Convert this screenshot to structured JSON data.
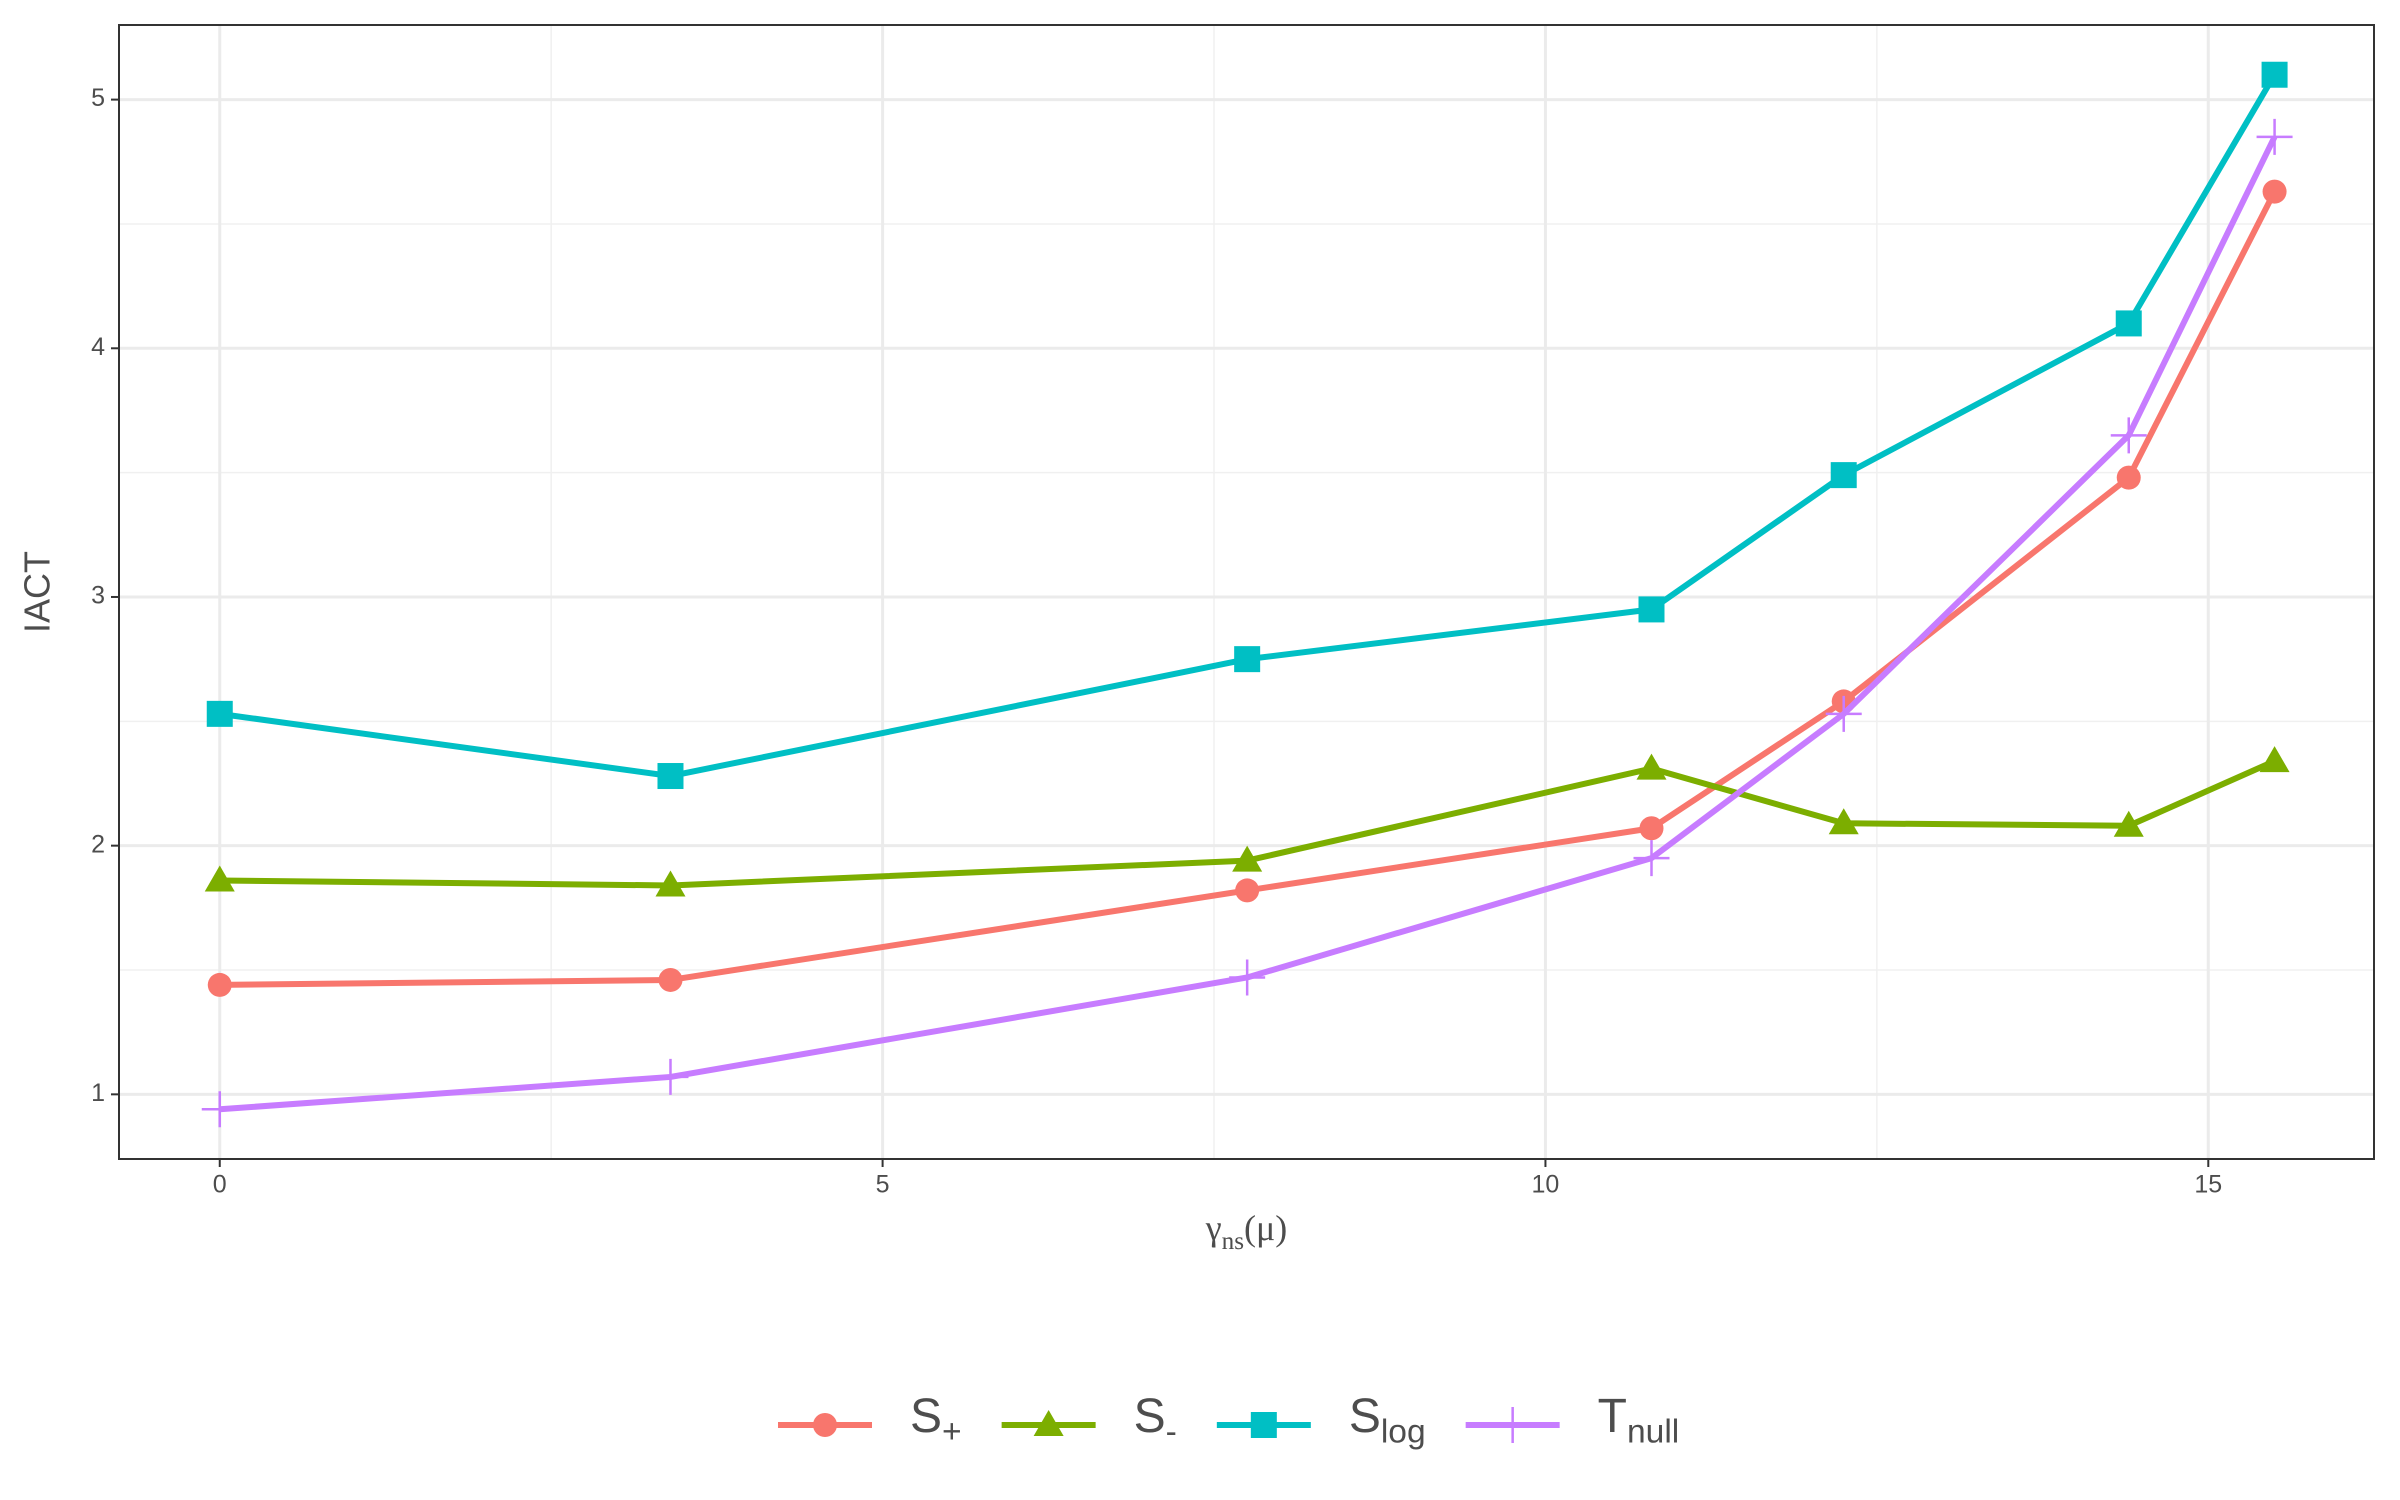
{
  "chart_data": {
    "type": "line",
    "x_label": "γns(μ)",
    "y_label": "IACT",
    "x": [
      0,
      3.4,
      7.75,
      10.8,
      12.25,
      14.4,
      15.5
    ],
    "series": [
      {
        "name": "S+",
        "color": "#f8766d",
        "marker": "circle",
        "values": [
          1.44,
          1.46,
          1.82,
          2.07,
          2.58,
          3.48,
          4.63
        ]
      },
      {
        "name": "S-",
        "color": "#7cae00",
        "marker": "triangle",
        "values": [
          1.86,
          1.84,
          1.94,
          2.31,
          2.09,
          2.08,
          2.34
        ]
      },
      {
        "name": "Slog",
        "color": "#00bfc4",
        "marker": "square",
        "values": [
          2.53,
          2.28,
          2.75,
          2.95,
          3.49,
          4.1,
          5.1
        ]
      },
      {
        "name": "Tnull",
        "color": "#c77cff",
        "marker": "plus",
        "values": [
          0.94,
          1.07,
          1.47,
          1.95,
          2.53,
          3.65,
          4.85
        ]
      }
    ],
    "xlim": [
      -0.76,
      16.25
    ],
    "ylim": [
      0.74,
      5.3
    ],
    "xticks": [
      0,
      5,
      10,
      15
    ],
    "yticks": [
      1,
      2,
      3,
      4,
      5
    ],
    "grid": true,
    "legend": "bottom"
  }
}
